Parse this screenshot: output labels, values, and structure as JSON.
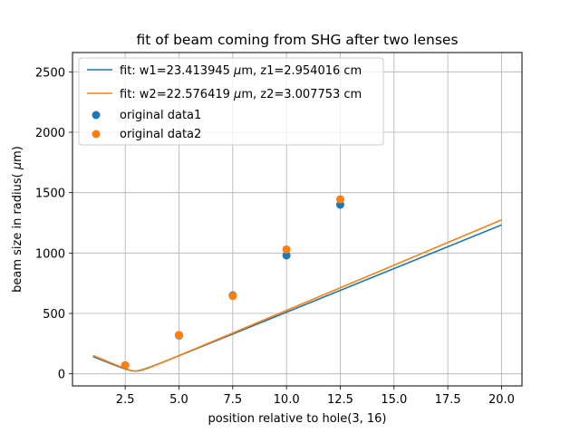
{
  "chart_data": {
    "type": "line",
    "title": "fit of beam coming from SHG after two lenses",
    "xlabel": "position relative to hole(3, 16)",
    "ylabel": "beam size in radius(μm)",
    "xlim": [
      0.05,
      20.95
    ],
    "ylim": [
      -100,
      2660
    ],
    "xticks": [
      2.5,
      5.0,
      7.5,
      10.0,
      12.5,
      15.0,
      17.5,
      20.0
    ],
    "xtick_labels": [
      "2.5",
      "5.0",
      "7.5",
      "10.0",
      "12.5",
      "15.0",
      "17.5",
      "20.0"
    ],
    "yticks": [
      0,
      500,
      1000,
      1500,
      2000,
      2500
    ],
    "ytick_labels": [
      "0",
      "500",
      "1000",
      "1500",
      "2000",
      "2500"
    ],
    "grid": true,
    "legend_position": "top-left",
    "fit_curves": [
      {
        "name": "fit: w1=23.413945 μm, z1=2.954016 cm",
        "label_text": "fit: w1=23.413945 ",
        "label_mu": "μ",
        "label_rest": "m, z1=2.954016 cm",
        "color": "#1f77b4",
        "w0_um": 23.413945,
        "z0_cm": 2.954016,
        "x_range": [
          1.0,
          20.0
        ]
      },
      {
        "name": "fit: w2=22.576419 μm, z2=3.007753 cm",
        "label_text": "fit: w2=22.576419 ",
        "label_mu": "μ",
        "label_rest": "m, z2=3.007753 cm",
        "color": "#ff7f0e",
        "w0_um": 22.576419,
        "z0_cm": 3.007753,
        "x_range": [
          1.0,
          20.0
        ]
      }
    ],
    "scatter_series": [
      {
        "name": "original data1",
        "color": "#1f77b4",
        "points": [
          [
            2.5,
            70
          ],
          [
            5.0,
            318
          ],
          [
            7.5,
            650
          ],
          [
            10.0,
            980
          ],
          [
            12.5,
            1400
          ]
        ]
      },
      {
        "name": "original data2",
        "color": "#ff7f0e",
        "points": [
          [
            2.5,
            72
          ],
          [
            5.0,
            322
          ],
          [
            7.5,
            645
          ],
          [
            10.0,
            1030
          ],
          [
            12.5,
            1445
          ]
        ]
      }
    ]
  }
}
